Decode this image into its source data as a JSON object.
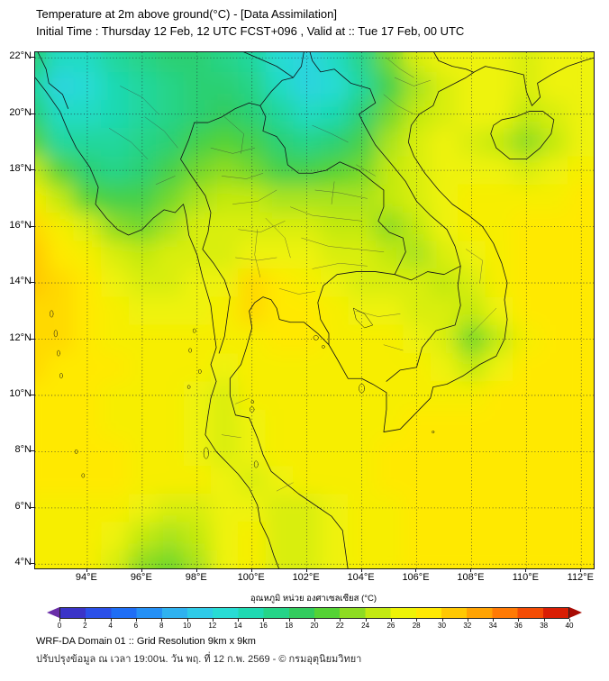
{
  "header": {
    "title": "Temperature at 2m above ground(°C) - [Data Assimilation]",
    "subtitle": "Initial Time : Thursday 12 Feb, 12 UTC FCST+096 , Valid at :: Tue 17 Feb, 00 UTC"
  },
  "map": {
    "lat_ticks": [
      "22°N",
      "20°N",
      "18°N",
      "16°N",
      "14°N",
      "12°N",
      "10°N",
      "8°N",
      "6°N",
      "4°N"
    ],
    "lon_ticks": [
      "94°E",
      "96°E",
      "98°E",
      "100°E",
      "102°E",
      "104°E",
      "106°E",
      "108°E",
      "110°E",
      "112°E"
    ]
  },
  "colorbar": {
    "title": "อุณหภูมิ หน่วย องศาเซลเซียส (°C)",
    "ticks": [
      0,
      2,
      4,
      6,
      8,
      10,
      12,
      14,
      16,
      18,
      20,
      22,
      24,
      26,
      28,
      30,
      32,
      34,
      36,
      38,
      40
    ],
    "range": [
      0,
      40
    ],
    "segment_colors": [
      "#3a34c8",
      "#2b50e8",
      "#1f6ef5",
      "#2590f5",
      "#2fb2f0",
      "#2fcbe8",
      "#28dcd4",
      "#1fd9b2",
      "#25d488",
      "#33cc5e",
      "#55d335",
      "#8edc22",
      "#c3e911",
      "#eef307",
      "#ffe903",
      "#ffc803",
      "#ffa303",
      "#ff7a04",
      "#f34c04",
      "#d91e04"
    ],
    "arrow_left_color": "#6a2ea8",
    "arrow_right_color": "#a80b04"
  },
  "footer": {
    "line1": "WRF-DA Domain 01 :: Grid Resolution 9km x 9km",
    "line2": "ปรับปรุงข้อมูล ณ เวลา 19:00น. วัน พฤ. ที่ 12 ก.พ. 2569 - © กรมอุตุนิยมวิทยา"
  },
  "chart_data": {
    "type": "heatmap",
    "title": "Temperature at 2m above ground (°C) - Data Assimilation, FCST+096 valid Tue 17 Feb 00 UTC",
    "xlabel": "Longitude (°E)",
    "ylabel": "Latitude (°N)",
    "xlim": [
      92.1,
      112.45
    ],
    "ylim": [
      3.85,
      22.2
    ],
    "grid": true,
    "legend_position": "bottom-colorbar",
    "x_lon": [
      92,
      93,
      94,
      95,
      96,
      97,
      98,
      99,
      100,
      101,
      102,
      103,
      104,
      105,
      106,
      107,
      108,
      109,
      110,
      111,
      112
    ],
    "y_lat": [
      22,
      21,
      20,
      19,
      18,
      17,
      16,
      15,
      14,
      13,
      12,
      11,
      10,
      9,
      8,
      7,
      6,
      5,
      4
    ],
    "values_degC": [
      [
        18,
        14,
        14,
        16,
        17,
        18,
        18,
        17,
        16,
        13,
        12,
        14,
        17,
        22,
        26,
        27,
        27,
        27,
        26,
        27,
        27
      ],
      [
        16,
        12,
        13,
        15,
        16,
        17,
        18,
        18,
        17,
        14,
        12,
        13,
        16,
        20,
        24,
        26,
        27,
        27,
        26,
        27,
        27
      ],
      [
        18,
        14,
        14,
        15,
        16,
        17,
        18,
        19,
        18,
        16,
        14,
        15,
        18,
        22,
        25,
        26,
        27,
        27,
        25,
        26,
        27
      ],
      [
        21,
        16,
        16,
        16,
        17,
        18,
        20,
        21,
        20,
        18,
        17,
        18,
        20,
        24,
        26,
        27,
        26,
        25,
        23,
        25,
        27
      ],
      [
        25,
        21,
        18,
        17,
        18,
        20,
        22,
        23,
        22,
        20,
        20,
        21,
        22,
        25,
        26,
        27,
        27,
        27,
        26,
        27,
        28
      ],
      [
        28,
        25,
        21,
        20,
        20,
        22,
        24,
        25,
        25,
        24,
        24,
        24,
        24,
        25,
        26,
        27,
        28,
        28,
        28,
        28,
        29
      ],
      [
        30,
        28,
        26,
        23,
        22,
        24,
        26,
        26,
        26,
        26,
        26,
        25,
        25,
        23,
        25,
        27,
        28,
        28,
        29,
        29,
        29
      ],
      [
        31,
        29,
        28,
        26,
        25,
        26,
        26,
        26,
        27,
        27,
        27,
        26,
        26,
        25,
        24,
        26,
        27,
        28,
        29,
        29,
        29
      ],
      [
        31,
        30,
        29,
        27,
        26,
        26,
        27,
        27,
        30,
        29,
        28,
        27,
        26,
        26,
        26,
        25,
        26,
        28,
        29,
        29,
        29
      ],
      [
        30,
        30,
        29,
        28,
        27,
        27,
        27,
        28,
        30,
        29,
        29,
        28,
        27,
        27,
        26,
        26,
        25,
        27,
        29,
        29,
        29
      ],
      [
        30,
        30,
        29,
        28,
        28,
        28,
        28,
        28,
        28,
        29,
        29,
        28,
        28,
        28,
        27,
        26,
        22,
        25,
        28,
        29,
        29
      ],
      [
        30,
        29,
        29,
        29,
        28,
        28,
        28,
        27,
        28,
        28,
        28,
        28,
        28,
        28,
        28,
        27,
        25,
        27,
        29,
        29,
        29
      ],
      [
        29,
        29,
        29,
        28,
        28,
        28,
        27,
        26,
        28,
        28,
        28,
        28,
        28,
        28,
        28,
        28,
        28,
        29,
        29,
        29,
        29
      ],
      [
        29,
        29,
        29,
        28,
        28,
        28,
        27,
        26,
        27,
        28,
        28,
        28,
        28,
        28,
        29,
        29,
        29,
        29,
        29,
        29,
        29
      ],
      [
        29,
        29,
        29,
        29,
        28,
        28,
        27,
        26,
        27,
        28,
        28,
        28,
        28,
        29,
        29,
        29,
        29,
        29,
        29,
        29,
        29
      ],
      [
        29,
        29,
        29,
        29,
        28,
        28,
        28,
        27,
        26,
        27,
        28,
        28,
        28,
        29,
        29,
        29,
        29,
        29,
        29,
        29,
        29
      ],
      [
        28,
        28,
        28,
        28,
        27,
        26,
        26,
        27,
        27,
        26,
        26,
        27,
        28,
        28,
        29,
        29,
        29,
        29,
        29,
        29,
        29
      ],
      [
        28,
        28,
        28,
        27,
        25,
        24,
        25,
        27,
        28,
        26,
        26,
        27,
        28,
        28,
        29,
        29,
        29,
        29,
        29,
        29,
        29
      ],
      [
        28,
        28,
        28,
        26,
        23,
        22,
        24,
        27,
        28,
        26,
        26,
        27,
        28,
        28,
        29,
        29,
        29,
        29,
        29,
        29,
        29
      ]
    ],
    "colorbar": {
      "label": "อุณหภูมิ หน่วย องศาเซลเซียส (°C)",
      "ticks": [
        0,
        2,
        4,
        6,
        8,
        10,
        12,
        14,
        16,
        18,
        20,
        22,
        24,
        26,
        28,
        30,
        32,
        34,
        36,
        38,
        40
      ]
    }
  }
}
